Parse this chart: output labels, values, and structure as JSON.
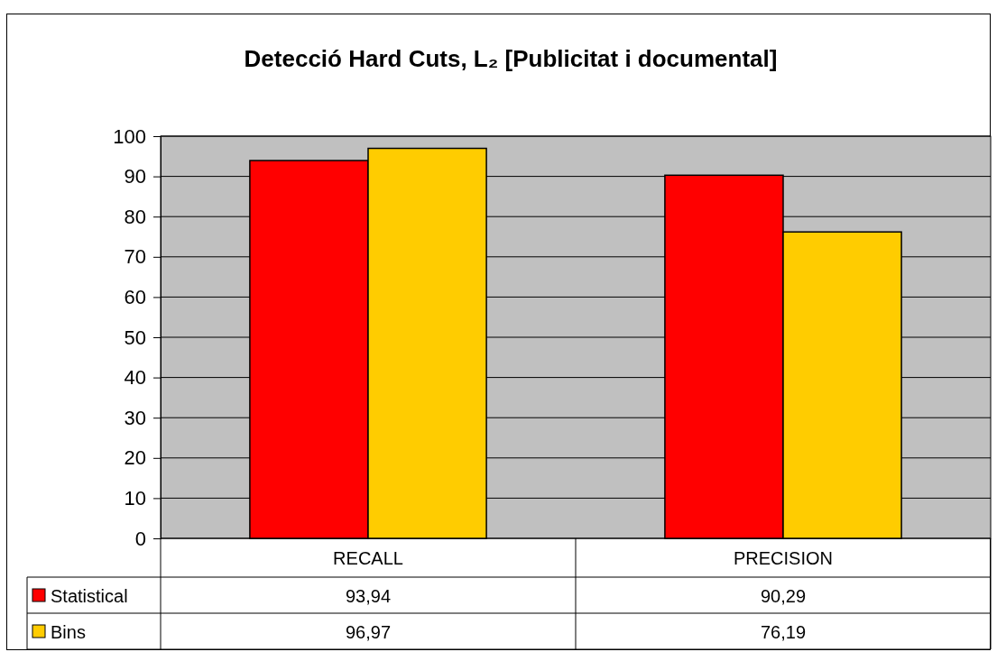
{
  "chart_data": {
    "type": "bar",
    "title": "Detecció Hard Cuts, L₂ [Publicitat i documental]",
    "categories": [
      "RECALL",
      "PRECISION"
    ],
    "series": [
      {
        "name": "Statistical",
        "color": "#ff0000",
        "values": [
          93.94,
          90.29
        ],
        "value_labels": [
          "93,94",
          "90,29"
        ]
      },
      {
        "name": "Bins",
        "color": "#ffcc00",
        "values": [
          96.97,
          76.19
        ],
        "value_labels": [
          "96,97",
          "76,19"
        ]
      }
    ],
    "ylim": [
      0,
      100
    ],
    "yticks": [
      0,
      10,
      20,
      30,
      40,
      50,
      60,
      70,
      80,
      90,
      100
    ],
    "grid": "y",
    "legend": "bottom left"
  }
}
